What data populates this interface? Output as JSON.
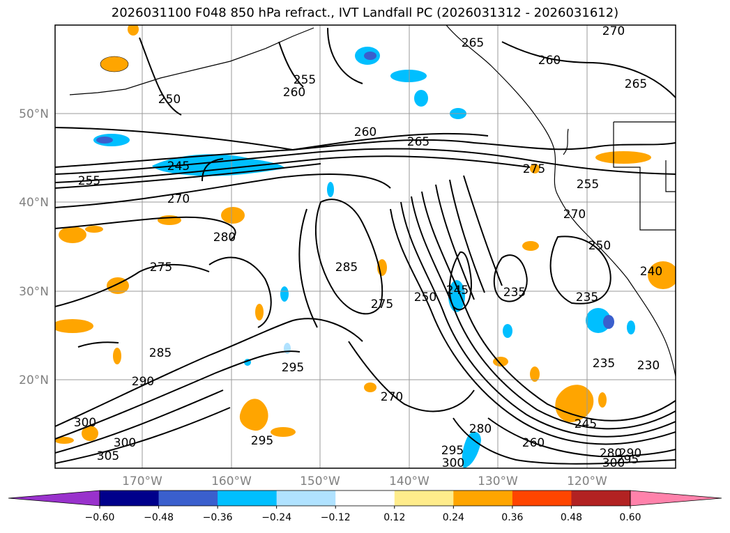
{
  "title": "2026031100 F048 850 hPa refract., IVT Landfall PC (2026031312 - 2026031612)",
  "lat_ticks": [
    "50°N",
    "40°N",
    "30°N",
    "20°N"
  ],
  "lon_ticks": [
    "170°W",
    "160°W",
    "150°W",
    "140°W",
    "130°W",
    "120°W"
  ],
  "colorbar": {
    "colors": [
      "#9932cc",
      "#00008b",
      "#3a5fcd",
      "#00bfff",
      "#b0e2ff",
      "#ffffff",
      "#ffec8b",
      "#ffa500",
      "#ff4500",
      "#b22222",
      "#ff82ab"
    ],
    "tick_labels": [
      "−0.60",
      "−0.48",
      "−0.36",
      "−0.24",
      "−0.12",
      "0.12",
      "0.24",
      "0.36",
      "0.48",
      "0.60"
    ]
  },
  "contour_labels": [
    "265",
    "270",
    "260",
    "265",
    "255",
    "260",
    "250",
    "245",
    "255",
    "265",
    "260",
    "270",
    "280",
    "275",
    "255",
    "270",
    "285",
    "275",
    "275",
    "250",
    "245",
    "235",
    "235",
    "240",
    "250",
    "285",
    "295",
    "270",
    "290",
    "300",
    "300",
    "305",
    "295",
    "280",
    "260",
    "295",
    "300",
    "245",
    "235",
    "230",
    "280",
    "290",
    "300",
    "295"
  ]
}
